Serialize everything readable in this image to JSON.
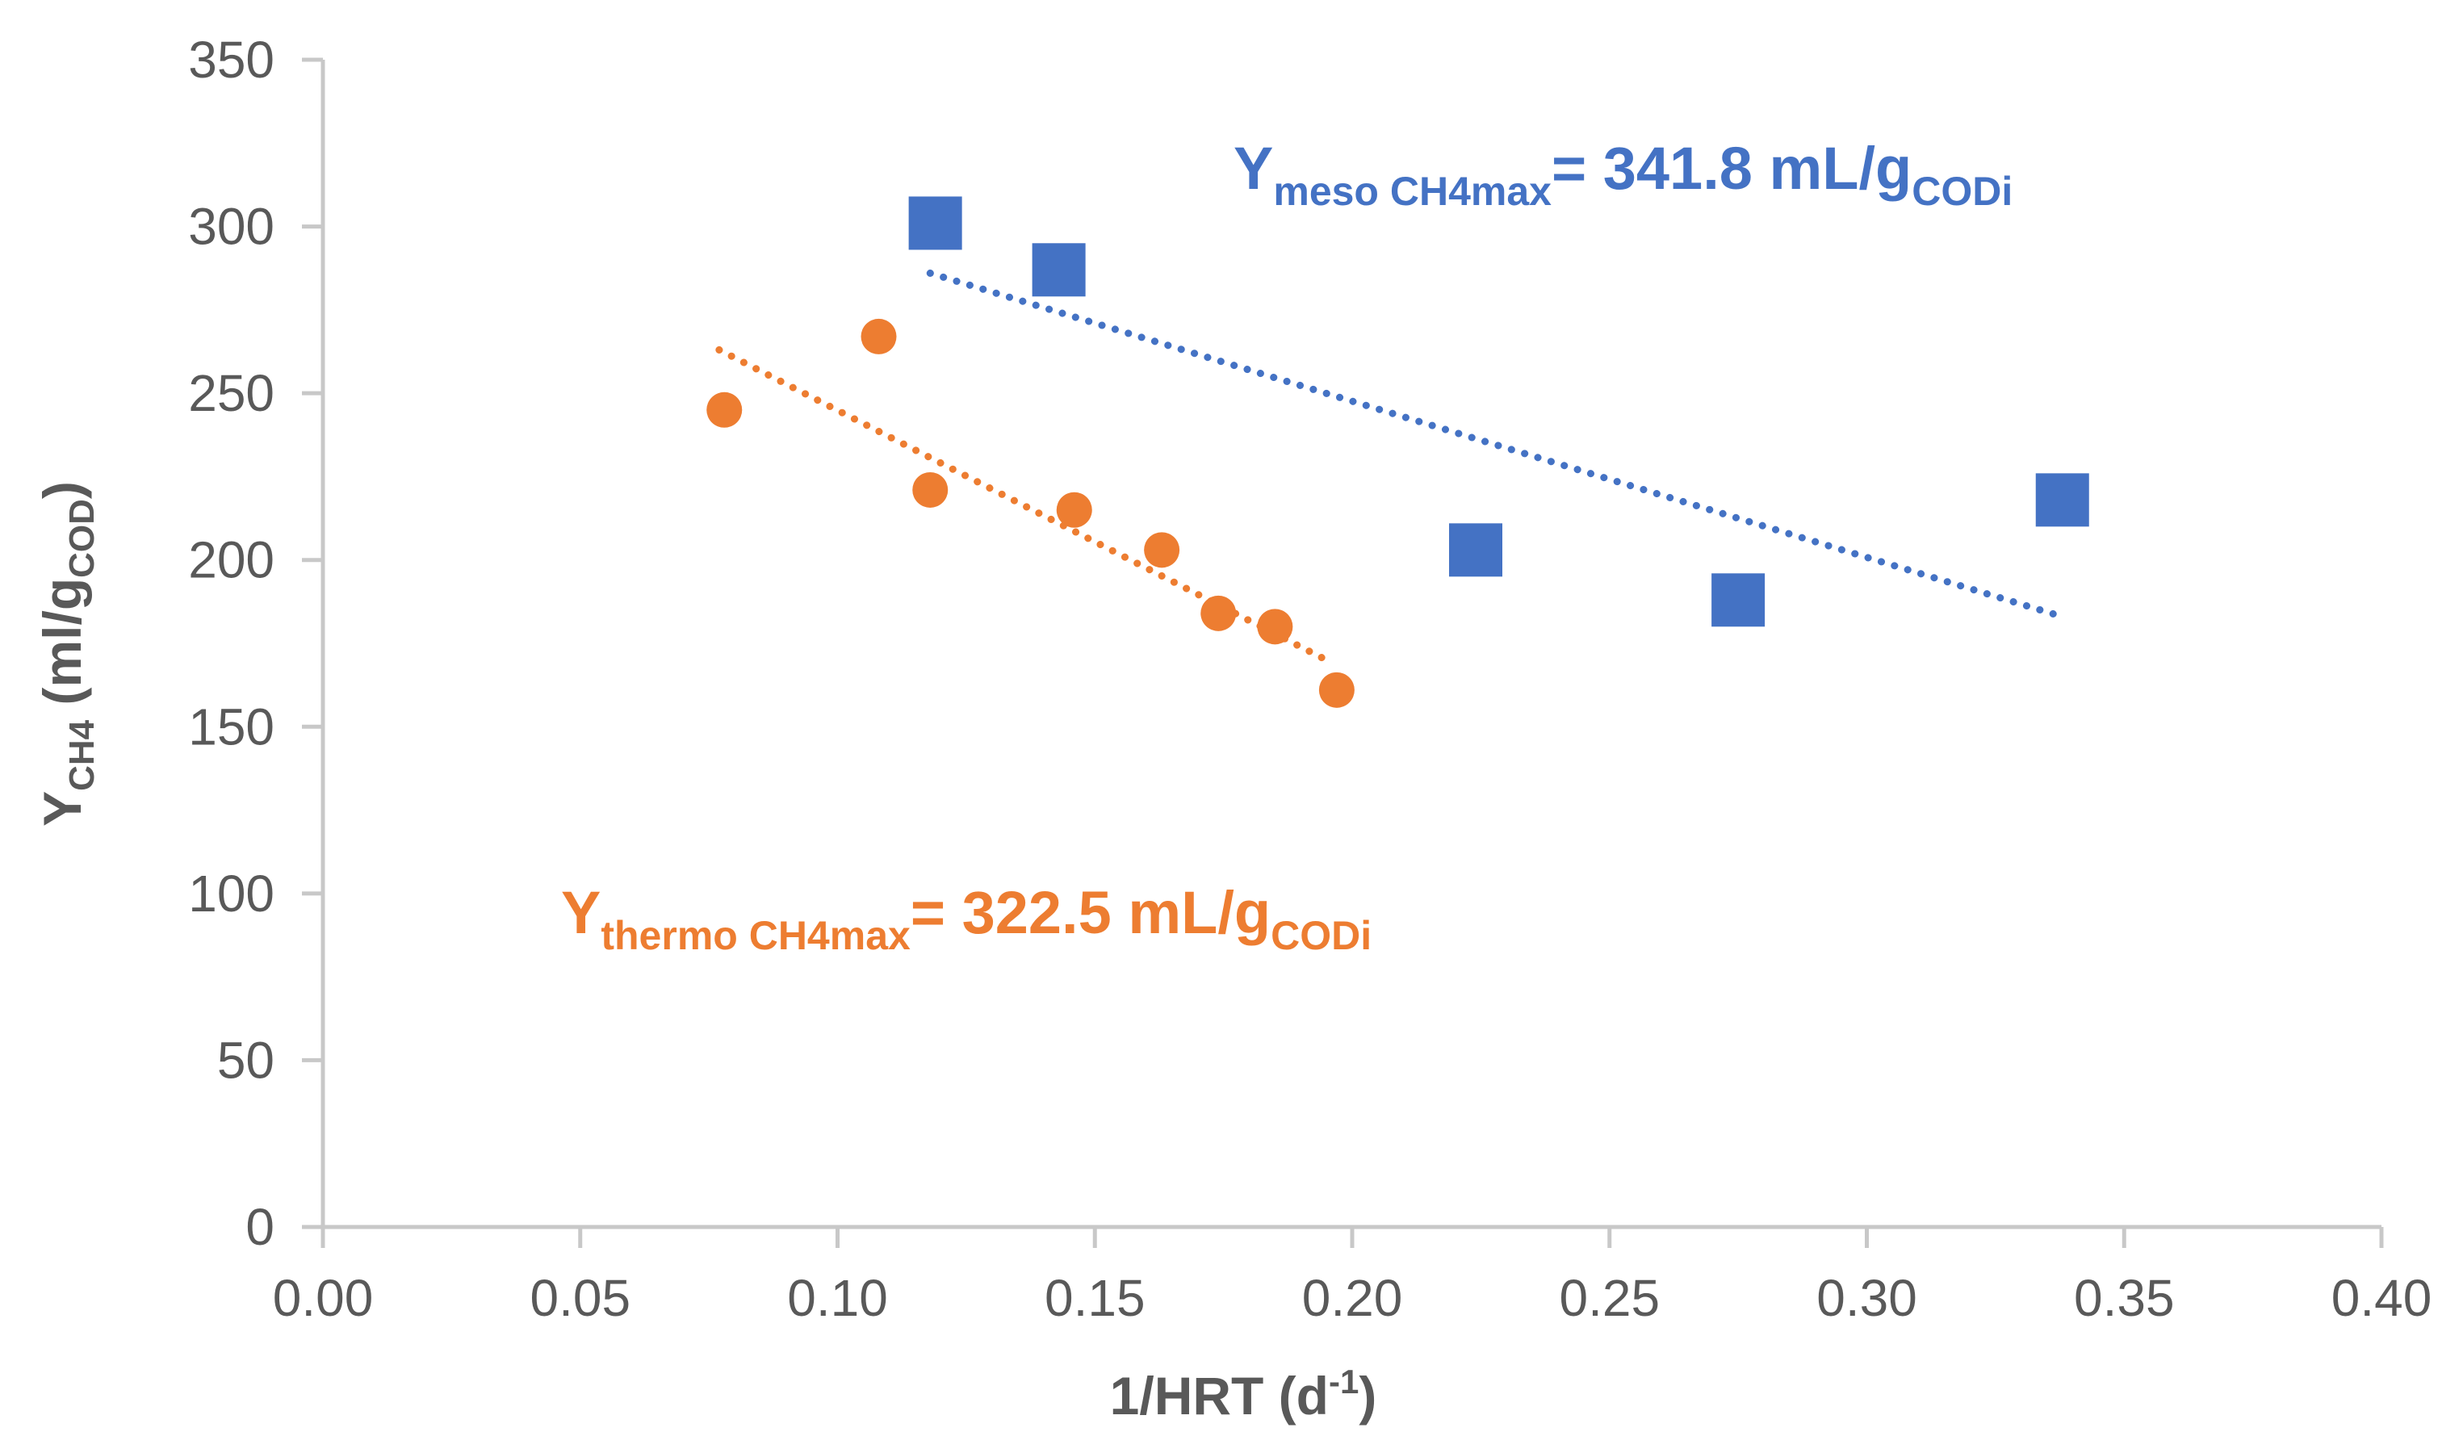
{
  "chart_data": {
    "type": "scatter",
    "xlabel": {
      "main": "1/HRT (d",
      "superscript": "-1",
      "close": ")"
    },
    "ylabel": {
      "main": "Y",
      "subscript": "CH4",
      "middle": " (ml/g",
      "subscript2": "COD",
      "close": ")"
    },
    "xlim": [
      0,
      0.4
    ],
    "ylim": [
      0,
      350
    ],
    "x_ticks": [
      "0.00",
      "0.05",
      "0.10",
      "0.15",
      "0.20",
      "0.25",
      "0.30",
      "0.35",
      "0.40"
    ],
    "y_ticks": [
      "0",
      "50",
      "100",
      "150",
      "200",
      "250",
      "300",
      "350"
    ],
    "grid": false,
    "series": [
      {
        "name": "meso",
        "marker": "square",
        "color": "#4472C4",
        "points": [
          {
            "x": 0.119,
            "y": 301
          },
          {
            "x": 0.143,
            "y": 287
          },
          {
            "x": 0.224,
            "y": 203
          },
          {
            "x": 0.275,
            "y": 188
          },
          {
            "x": 0.338,
            "y": 218
          }
        ],
        "trendline": {
          "x": [
            0.118,
            0.338
          ],
          "y": [
            286,
            183
          ]
        },
        "annotation": {
          "main": "Y",
          "sub": "meso CH4max",
          "rest": "= 341.8 mL/g",
          "sub2": "CODi"
        }
      },
      {
        "name": "thermo",
        "marker": "circle",
        "color": "#ED7D31",
        "points": [
          {
            "x": 0.078,
            "y": 245
          },
          {
            "x": 0.108,
            "y": 267
          },
          {
            "x": 0.118,
            "y": 221
          },
          {
            "x": 0.146,
            "y": 215
          },
          {
            "x": 0.163,
            "y": 203
          },
          {
            "x": 0.174,
            "y": 184
          },
          {
            "x": 0.185,
            "y": 180
          },
          {
            "x": 0.197,
            "y": 161
          }
        ],
        "trendline": {
          "x": [
            0.077,
            0.195
          ],
          "y": [
            263,
            170
          ]
        },
        "annotation": {
          "main": "Y",
          "sub": "thermo CH4max",
          "rest": "= 322.5 mL/g",
          "sub2": "CODi"
        }
      }
    ]
  }
}
